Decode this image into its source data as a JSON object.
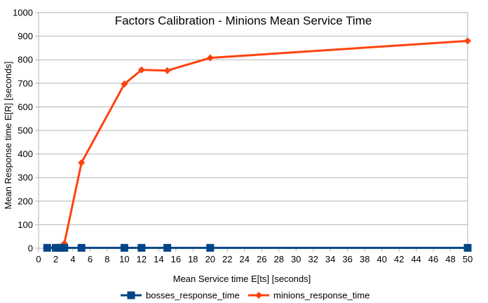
{
  "chart_data": {
    "type": "line",
    "title": "Factors Calibration - Minions Mean Service Time",
    "xlabel": "Mean Service time E[ts] [seconds]",
    "ylabel": "Mean Response time E[R] [seconds]",
    "xlim": [
      0,
      50
    ],
    "ylim": [
      0,
      1000
    ],
    "xticks": [
      0,
      2,
      4,
      6,
      8,
      10,
      12,
      14,
      16,
      18,
      20,
      22,
      24,
      26,
      28,
      30,
      32,
      34,
      36,
      38,
      40,
      42,
      44,
      46,
      48,
      50
    ],
    "yticks": [
      0,
      100,
      200,
      300,
      400,
      500,
      600,
      700,
      800,
      900,
      1000
    ],
    "grid": "horizontal",
    "legend_position": "bottom",
    "series": [
      {
        "name": "bosses_response_time",
        "color": "#004586",
        "marker": "square",
        "x": [
          1,
          2,
          2.5,
          3,
          5,
          10,
          12,
          15,
          20,
          50
        ],
        "y": [
          2,
          2,
          2,
          2,
          2,
          2,
          2,
          2,
          2,
          2
        ]
      },
      {
        "name": "minions_response_time",
        "color": "#ff420e",
        "marker": "diamond",
        "x": [
          1,
          2,
          2.5,
          3,
          5,
          10,
          12,
          15,
          20,
          50
        ],
        "y": [
          2,
          3,
          4,
          20,
          363,
          697,
          757,
          754,
          808,
          880
        ]
      }
    ]
  }
}
